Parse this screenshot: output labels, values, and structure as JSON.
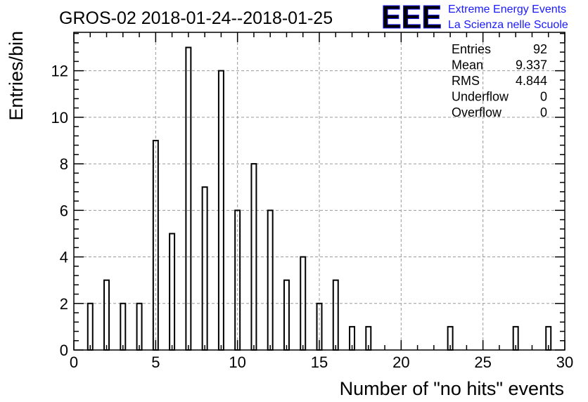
{
  "chart_data": {
    "type": "bar",
    "title": "GROS-02 2018-01-24--2018-01-25",
    "xlabel": "Number of \"no hits\" events",
    "ylabel": "Entries/bin",
    "xlim": [
      0,
      30
    ],
    "ylim": [
      0,
      13.65
    ],
    "x_ticks": [
      0,
      5,
      10,
      15,
      20,
      25,
      30
    ],
    "y_ticks": [
      0,
      2,
      4,
      6,
      8,
      10,
      12
    ],
    "grid": true,
    "bin_width": 0.3,
    "x": [
      1,
      2,
      3,
      4,
      5,
      6,
      7,
      8,
      9,
      10,
      11,
      12,
      13,
      14,
      15,
      16,
      17,
      18,
      23,
      27,
      29
    ],
    "values": [
      2,
      3,
      2,
      2,
      9,
      5,
      13,
      7,
      12,
      6,
      8,
      6,
      3,
      4,
      2,
      3,
      1,
      1,
      1,
      1,
      1
    ],
    "stats": [
      {
        "label": "Entries",
        "value": "92"
      },
      {
        "label": "Mean",
        "value": "9.337"
      },
      {
        "label": "RMS",
        "value": "4.844"
      },
      {
        "label": "Underflow",
        "value": "0"
      },
      {
        "label": "Overflow",
        "value": "0"
      }
    ],
    "colors": {
      "bar": "#000000",
      "logo": "#1a1aff",
      "grid": "#9a9a9a"
    }
  },
  "logo": {
    "mark": "EEE",
    "line1": "Extreme Energy Events",
    "line2": "La Scienza nelle Scuole"
  }
}
